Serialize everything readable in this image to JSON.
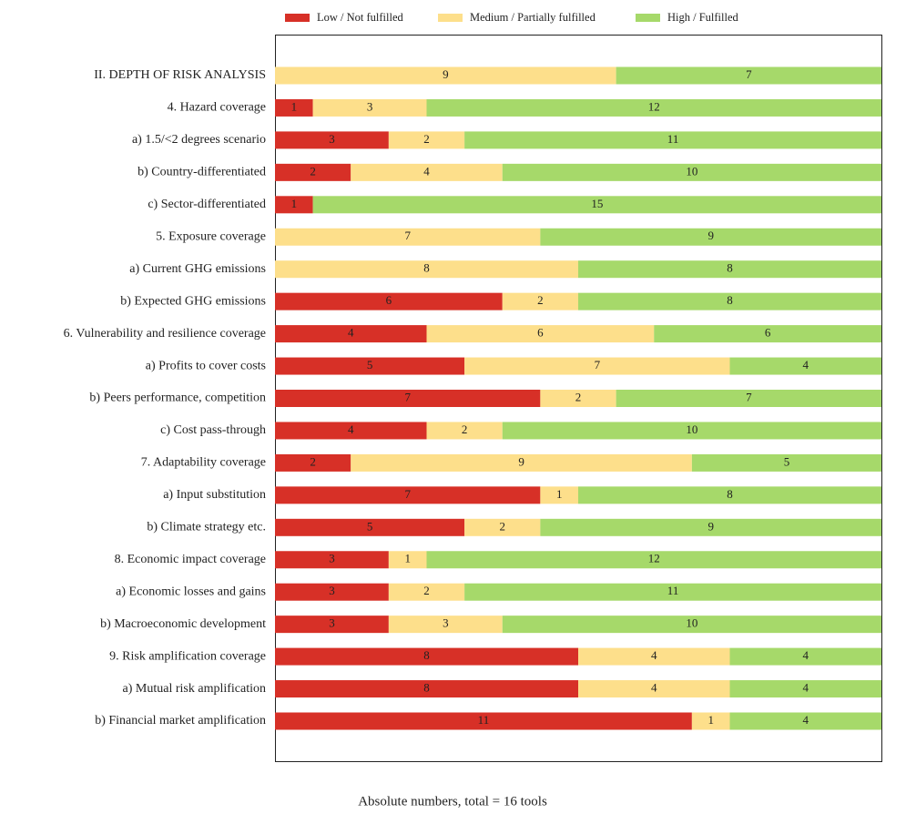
{
  "chart_data": {
    "type": "stacked-barh",
    "xlabel": "Absolute numbers, total = 16 tools",
    "categories": [
      "II. DEPTH OF RISK ANALYSIS",
      "4. Hazard coverage",
      "a) 1.5/<2 degrees scenario",
      "b) Country-differentiated",
      "c) Sector-differentiated",
      "5. Exposure coverage",
      "a) Current GHG emissions",
      "b) Expected GHG emissions",
      "6. Vulnerability and resilience coverage",
      "a) Profits to cover costs",
      "b) Peers performance, competition",
      "c) Cost pass-through",
      "7. Adaptability coverage",
      "a) Input substitution",
      "b) Climate strategy etc.",
      "8. Economic impact coverage",
      "a) Economic losses and gains",
      "b) Macroeconomic development",
      "9. Risk amplification coverage",
      "a) Mutual risk amplification",
      "b) Financial market amplification"
    ],
    "series": [
      {
        "name": "Low / Not fulfilled",
        "color": "#d73027",
        "values": [
          0,
          1,
          3,
          2,
          1,
          0,
          0,
          6,
          4,
          5,
          7,
          4,
          2,
          7,
          5,
          3,
          3,
          3,
          8,
          8,
          11
        ]
      },
      {
        "name": "Medium / Partially fulfilled",
        "color": "#fddf8b",
        "values": [
          9,
          3,
          2,
          4,
          0,
          7,
          8,
          2,
          6,
          7,
          2,
          2,
          9,
          1,
          2,
          1,
          2,
          3,
          4,
          4,
          1
        ]
      },
      {
        "name": "High / Fulfilled",
        "color": "#a6d96a",
        "values": [
          7,
          12,
          11,
          10,
          15,
          9,
          8,
          8,
          6,
          4,
          7,
          10,
          5,
          8,
          9,
          12,
          11,
          10,
          4,
          4,
          4
        ]
      }
    ],
    "xlim": [
      0,
      16
    ]
  }
}
